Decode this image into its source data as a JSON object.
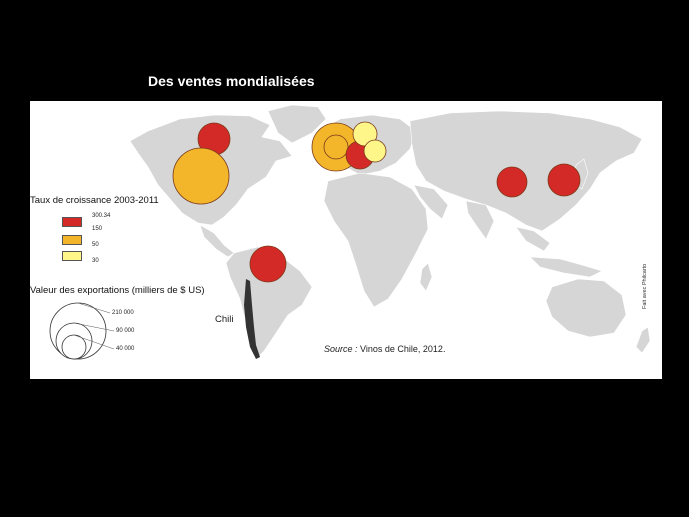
{
  "title": "Des ventes mondialisées",
  "legend_growth": {
    "title": "Taux de croissance 2003-2011",
    "classes": [
      {
        "label": "300.34",
        "color": "#d42a27"
      },
      {
        "label": "150",
        "color": "#d42a27"
      },
      {
        "label": "50",
        "color": "#f3b52a"
      },
      {
        "label": "30",
        "color": "#fff68a"
      }
    ]
  },
  "legend_size": {
    "title": "Valeur des exportations (milliers de $ US)",
    "values": [
      "210 000",
      "90 000",
      "40 000"
    ]
  },
  "country_label": "Chili",
  "source": {
    "prefix": "Source :",
    "text": "Vinos de Chile, 2012."
  },
  "credit": "Fait avec Philcarto",
  "colors": {
    "land": "#d6d6d6",
    "red": "#d42a27",
    "orange": "#f3b52a",
    "yellow": "#fff68a",
    "chile": "#333333"
  },
  "bubbles": [
    {
      "place": "Canada",
      "class": "red"
    },
    {
      "place": "États-Unis",
      "class": "orange"
    },
    {
      "place": "Royaume-Uni",
      "class": "orange"
    },
    {
      "place": "Pays-Bas",
      "class": "orange"
    },
    {
      "place": "Allemagne",
      "class": "red"
    },
    {
      "place": "Danemark",
      "class": "yellow"
    },
    {
      "place": "Pologne",
      "class": "yellow"
    },
    {
      "place": "Brésil",
      "class": "red"
    },
    {
      "place": "Chine",
      "class": "red"
    },
    {
      "place": "Japon",
      "class": "red"
    }
  ]
}
